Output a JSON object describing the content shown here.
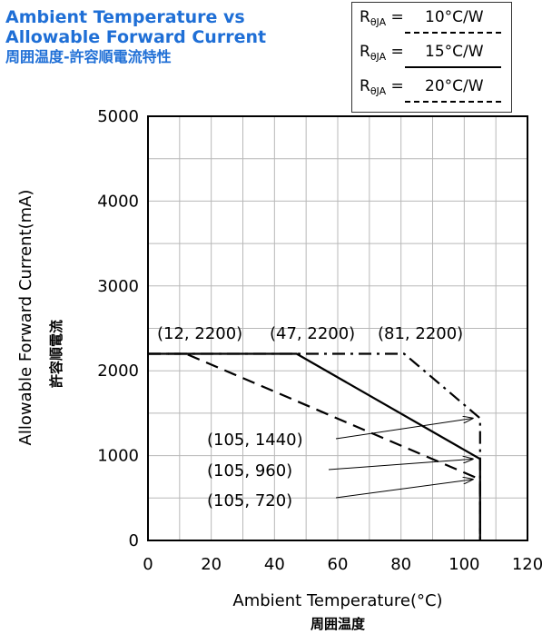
{
  "title": {
    "line1": "Ambient Temperature vs",
    "line2": "Allowable Forward Current",
    "line3": "周囲温度-許容順電流特性"
  },
  "legend": {
    "items": [
      {
        "symbol": "R",
        "subscript": "θJA",
        "eq": " = ",
        "value": "10°C/W",
        "style": "dash-dot"
      },
      {
        "symbol": "R",
        "subscript": "θJA",
        "eq": " = ",
        "value": "15°C/W",
        "style": "solid"
      },
      {
        "symbol": "R",
        "subscript": "θJA",
        "eq": " = ",
        "value": "20°C/W",
        "style": "dashed"
      }
    ]
  },
  "chart_data": {
    "type": "line",
    "xlabel": "Ambient Temperature(°C)",
    "xlabel_jp": "周囲温度",
    "ylabel": "Allowable Forward Current(mA)",
    "ylabel_jp": "許容順電流",
    "xlim": [
      0,
      120
    ],
    "ylim": [
      0,
      5000
    ],
    "xticks": [
      0,
      20,
      40,
      60,
      80,
      100,
      120
    ],
    "yticks": [
      0,
      1000,
      2000,
      3000,
      4000,
      5000
    ],
    "grid": true,
    "series": [
      {
        "name": "10°C/W",
        "style": "dash-dot",
        "color": "#000000",
        "points": [
          [
            0,
            2200
          ],
          [
            81,
            2200
          ],
          [
            105,
            1440
          ],
          [
            105,
            0
          ]
        ]
      },
      {
        "name": "15°C/W",
        "style": "solid",
        "color": "#000000",
        "points": [
          [
            0,
            2200
          ],
          [
            47,
            2200
          ],
          [
            105,
            960
          ],
          [
            105,
            0
          ]
        ]
      },
      {
        "name": "20°C/W",
        "style": "dashed",
        "color": "#000000",
        "points": [
          [
            0,
            2200
          ],
          [
            12,
            2200
          ],
          [
            105,
            720
          ],
          [
            105,
            0
          ]
        ]
      }
    ],
    "annotations": [
      {
        "text": "(12, 2200)",
        "x": 12,
        "y": 2200,
        "arrow": false
      },
      {
        "text": "(47, 2200)",
        "x": 47,
        "y": 2200,
        "arrow": false
      },
      {
        "text": "(81, 2200)",
        "x": 81,
        "y": 2200,
        "arrow": false
      },
      {
        "text": "(105, 1440)",
        "x": 105,
        "y": 1440,
        "arrow": true
      },
      {
        "text": "(105, 960)",
        "x": 105,
        "y": 960,
        "arrow": true
      },
      {
        "text": "(105, 720)",
        "x": 105,
        "y": 720,
        "arrow": true
      }
    ]
  }
}
